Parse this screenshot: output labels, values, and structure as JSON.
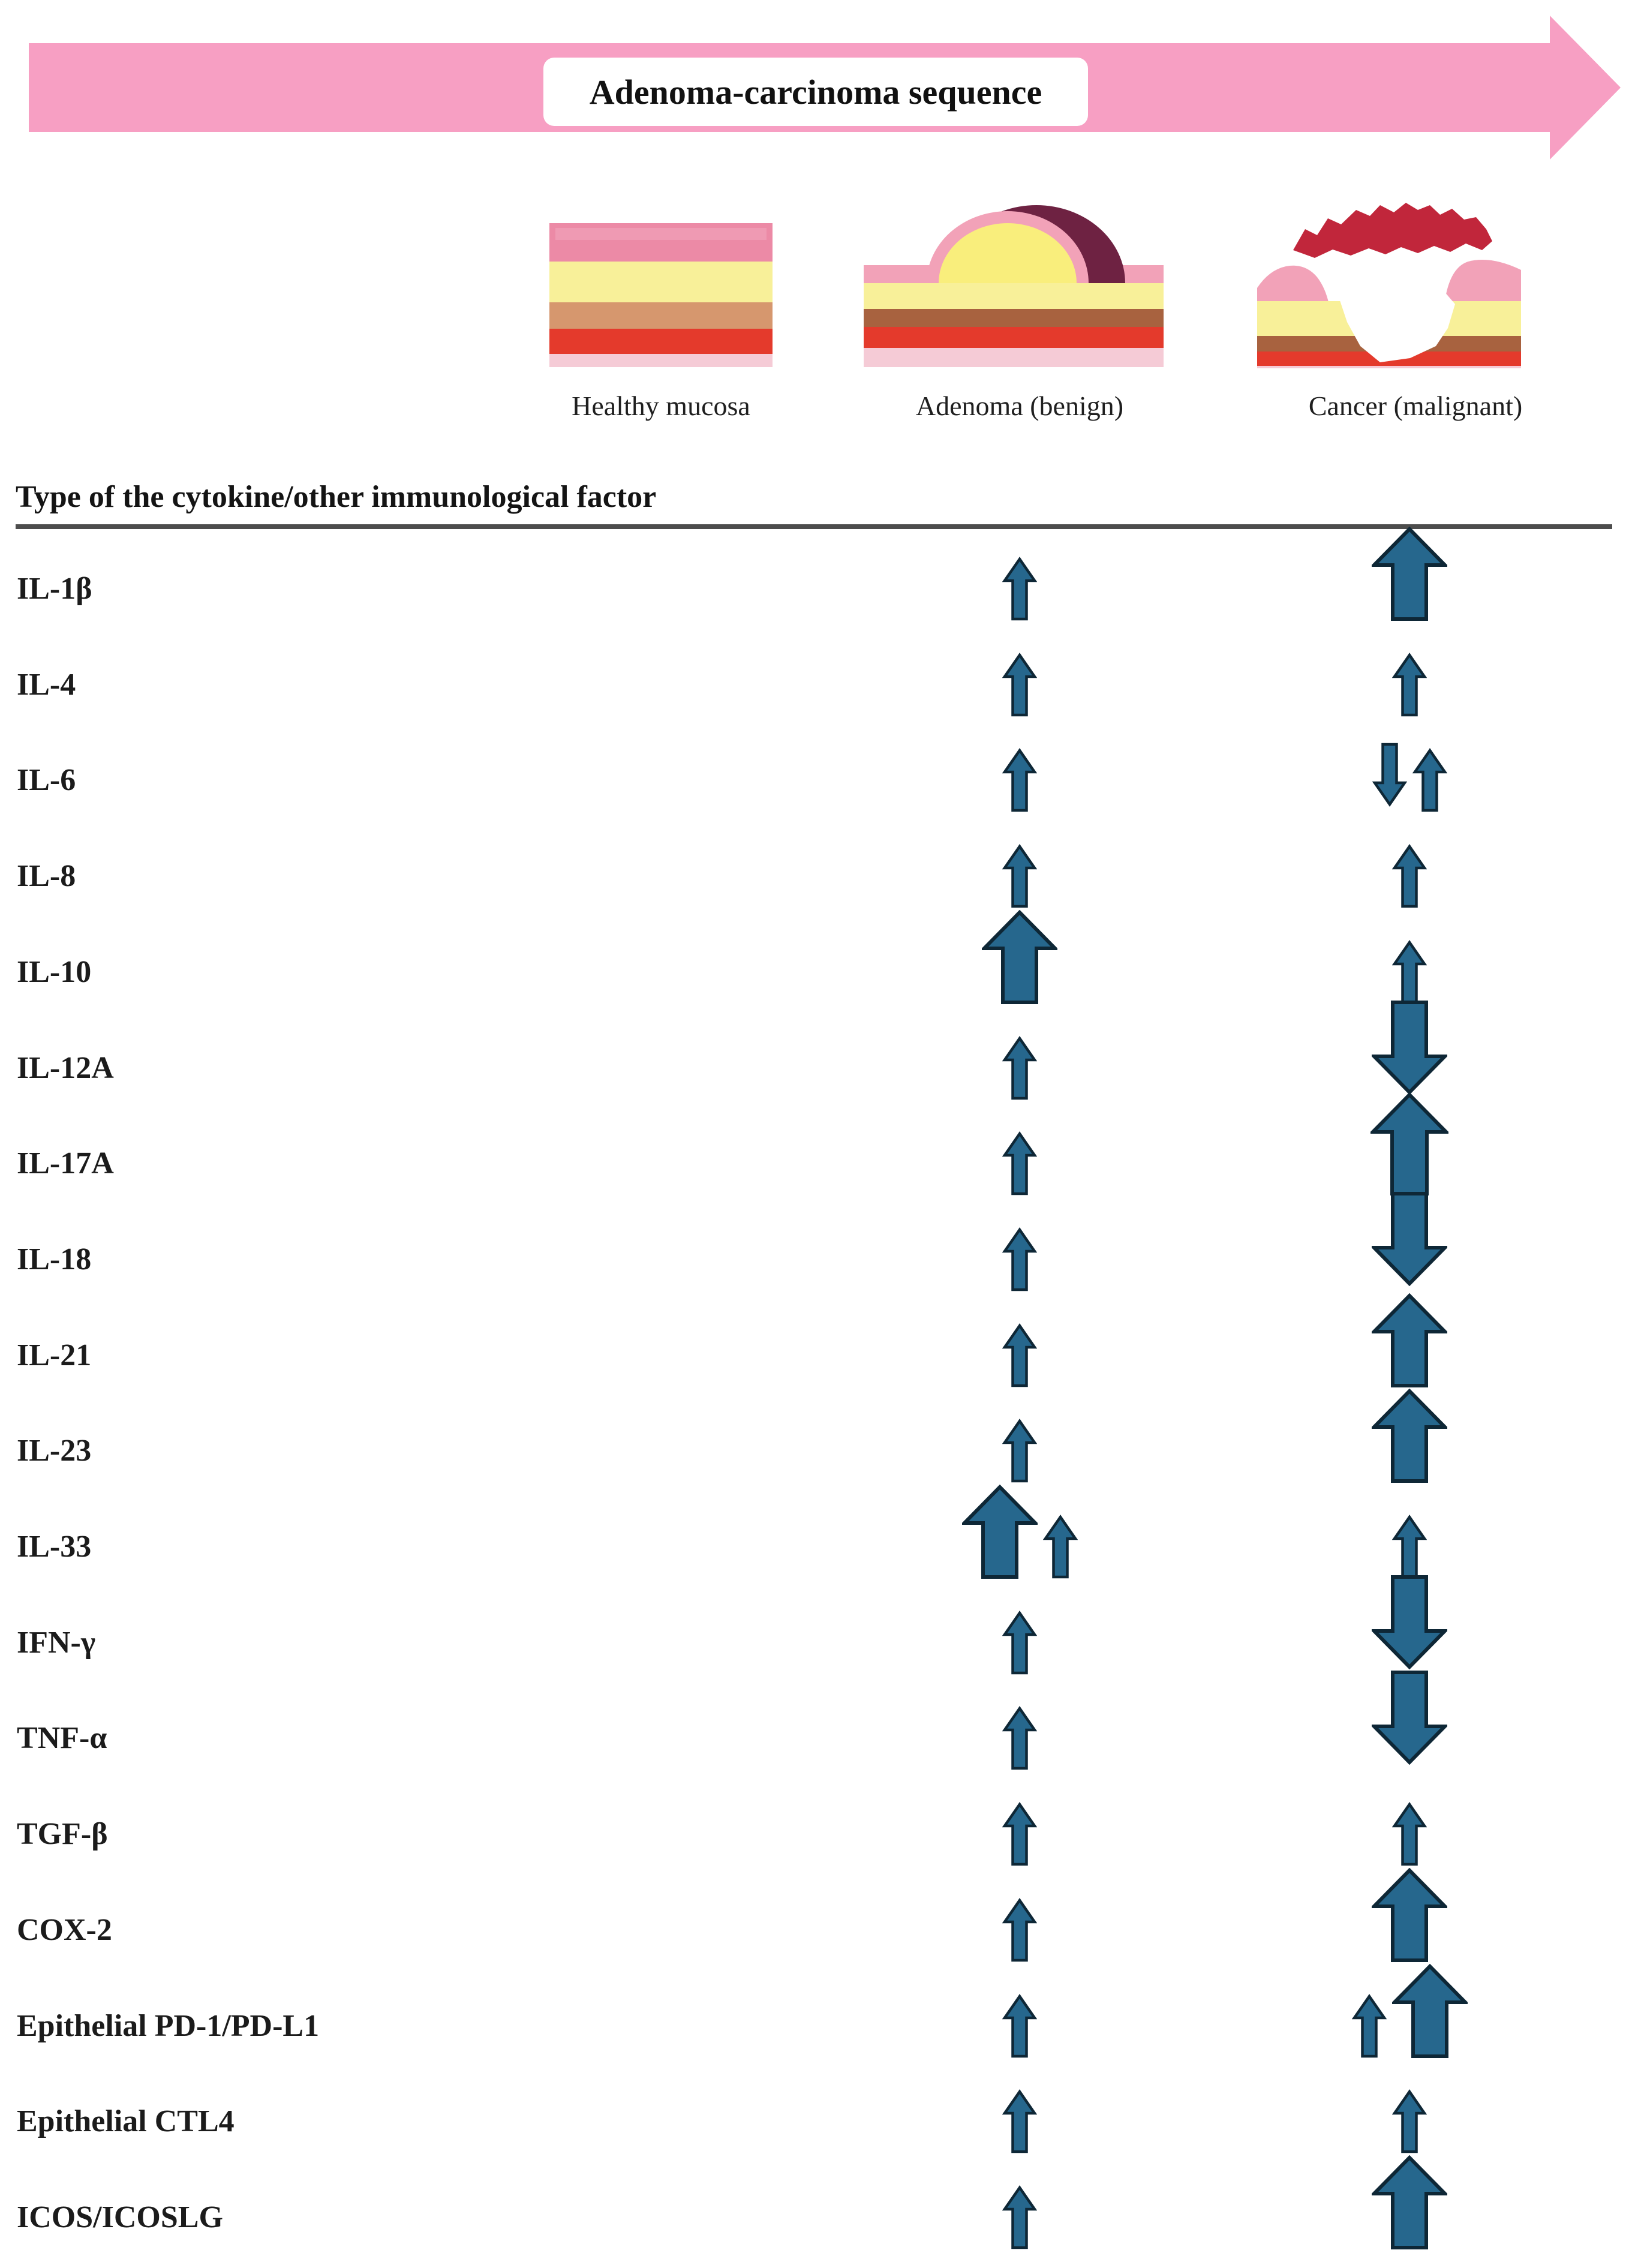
{
  "banner": {
    "label": "Adenoma-carcinoma sequence"
  },
  "stages": [
    {
      "label": "Healthy mucosa"
    },
    {
      "label": "Adenoma (benign)"
    },
    {
      "label": "Cancer (malignant)"
    }
  ],
  "table": {
    "header": "Type of the cytokine/other immunological factor",
    "arrow_columns": [
      "Adenoma (benign)",
      "Cancer (malignant)"
    ],
    "rows": [
      {
        "label": "IL-1β",
        "adenoma": [
          {
            "dir": "up",
            "size": "small"
          }
        ],
        "cancer": [
          {
            "dir": "up",
            "size": "big"
          }
        ]
      },
      {
        "label": "IL-4",
        "adenoma": [
          {
            "dir": "up",
            "size": "small"
          }
        ],
        "cancer": [
          {
            "dir": "up",
            "size": "small"
          }
        ]
      },
      {
        "label": "IL-6",
        "adenoma": [
          {
            "dir": "up",
            "size": "small"
          }
        ],
        "cancer": [
          {
            "dir": "down",
            "size": "small"
          },
          {
            "dir": "up",
            "size": "small"
          }
        ]
      },
      {
        "label": "IL-8",
        "adenoma": [
          {
            "dir": "up",
            "size": "small"
          }
        ],
        "cancer": [
          {
            "dir": "up",
            "size": "small"
          }
        ]
      },
      {
        "label": "IL-10",
        "adenoma": [
          {
            "dir": "up",
            "size": "big"
          }
        ],
        "cancer": [
          {
            "dir": "up",
            "size": "small"
          }
        ]
      },
      {
        "label": "IL-12A",
        "adenoma": [
          {
            "dir": "up",
            "size": "small"
          }
        ],
        "cancer": [
          {
            "dir": "down",
            "size": "big"
          }
        ]
      },
      {
        "label": "IL-17A",
        "adenoma": [
          {
            "dir": "up",
            "size": "small"
          }
        ],
        "cancer": [
          {
            "dir": "up",
            "size": "xbig"
          }
        ]
      },
      {
        "label": "IL-18",
        "adenoma": [
          {
            "dir": "up",
            "size": "small"
          }
        ],
        "cancer": [
          {
            "dir": "down",
            "size": "big"
          }
        ]
      },
      {
        "label": "IL-21",
        "adenoma": [
          {
            "dir": "up",
            "size": "small"
          }
        ],
        "cancer": [
          {
            "dir": "up",
            "size": "big"
          }
        ]
      },
      {
        "label": "IL-23",
        "adenoma": [
          {
            "dir": "up",
            "size": "small"
          }
        ],
        "cancer": [
          {
            "dir": "up",
            "size": "big"
          }
        ]
      },
      {
        "label": "IL-33",
        "adenoma": [
          {
            "dir": "up",
            "size": "big"
          },
          {
            "dir": "up",
            "size": "small"
          }
        ],
        "cancer": [
          {
            "dir": "up",
            "size": "small"
          }
        ]
      },
      {
        "label": "IFN-γ",
        "adenoma": [
          {
            "dir": "up",
            "size": "small"
          }
        ],
        "cancer": [
          {
            "dir": "down",
            "size": "big"
          }
        ]
      },
      {
        "label": "TNF-α",
        "adenoma": [
          {
            "dir": "up",
            "size": "small"
          }
        ],
        "cancer": [
          {
            "dir": "down",
            "size": "big"
          }
        ]
      },
      {
        "label": "TGF-β",
        "adenoma": [
          {
            "dir": "up",
            "size": "small"
          }
        ],
        "cancer": [
          {
            "dir": "up",
            "size": "small"
          }
        ]
      },
      {
        "label": "COX-2",
        "adenoma": [
          {
            "dir": "up",
            "size": "small"
          }
        ],
        "cancer": [
          {
            "dir": "up",
            "size": "big"
          }
        ]
      },
      {
        "label": "Epithelial PD-1/PD-L1",
        "adenoma": [
          {
            "dir": "up",
            "size": "small"
          }
        ],
        "cancer": [
          {
            "dir": "up",
            "size": "small"
          },
          {
            "dir": "up",
            "size": "big"
          }
        ]
      },
      {
        "label": "Epithelial CTL4",
        "adenoma": [
          {
            "dir": "up",
            "size": "small"
          }
        ],
        "cancer": [
          {
            "dir": "up",
            "size": "small"
          }
        ]
      },
      {
        "label": "ICOS/ICOSLG",
        "adenoma": [
          {
            "dir": "up",
            "size": "small"
          }
        ],
        "cancer": [
          {
            "dir": "up",
            "size": "big"
          }
        ]
      }
    ]
  },
  "colors": {
    "bannerPink": "#F79FC3",
    "arrowFill": "#26678D",
    "arrowStroke": "#0E2736",
    "rule": "#4D4D4D",
    "rose": "#EC8AA6",
    "paleYellow": "#F8F099",
    "tan": "#D6976E",
    "red": "#E43A2C",
    "lightPink": "#F5CBD6",
    "maroon": "#6E2242",
    "domeYellow": "#F9EE7C",
    "domePink": "#F2A2B8",
    "brown": "#A8623F",
    "crownRed": "#C1263B"
  }
}
